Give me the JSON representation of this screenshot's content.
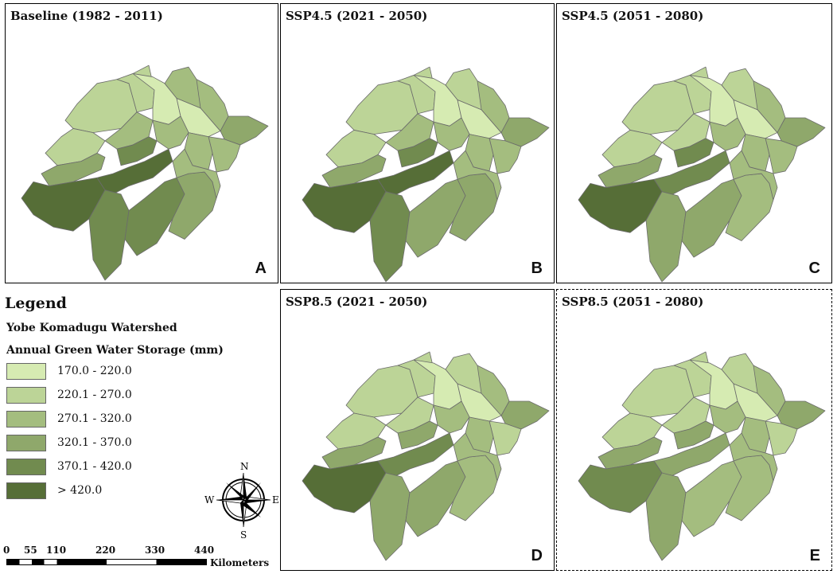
{
  "panels": [
    {
      "title": "Baseline (1982 - 2011)",
      "letter": "A"
    },
    {
      "title": "SSP4.5 (2021 - 2050)",
      "letter": "B"
    },
    {
      "title": "SSP4.5 (2051 - 2080)",
      "letter": "C"
    },
    {
      "title": "SSP8.5 (2021 - 2050)",
      "letter": "D"
    },
    {
      "title": "SSP8.5 (2051 - 2080)",
      "letter": "E"
    }
  ],
  "legend": {
    "heading": "Legend",
    "line1": "Yobe Komadugu Watershed",
    "line2": "Annual Green Water Storage (mm)",
    "classes": [
      {
        "label": "170.0 - 220.0",
        "color": "#d6ebb2"
      },
      {
        "label": "220.1 - 270.0",
        "color": "#bcd497"
      },
      {
        "label": "270.1 - 320.0",
        "color": "#a4bd7f"
      },
      {
        "label": "320.1 - 370.0",
        "color": "#8fa86b"
      },
      {
        "label": "370.1 - 420.0",
        "color": "#718b4f"
      },
      {
        "label": "> 420.0",
        "color": "#566e37"
      }
    ]
  },
  "compass": {
    "n": "N",
    "s": "S",
    "e": "E",
    "w": "W"
  },
  "scale": {
    "ticks": [
      "0",
      "55",
      "110",
      "220",
      "330",
      "440"
    ],
    "unit": "Kilometers"
  },
  "scenarios": [
    [
      1,
      1,
      0,
      0,
      2,
      2,
      3,
      2,
      1,
      2,
      2,
      2,
      3,
      4,
      5,
      5,
      4,
      4,
      3,
      2
    ],
    [
      1,
      1,
      0,
      0,
      1,
      2,
      3,
      2,
      1,
      2,
      2,
      2,
      3,
      4,
      5,
      5,
      4,
      3,
      3,
      2
    ],
    [
      1,
      1,
      0,
      0,
      1,
      2,
      3,
      2,
      1,
      1,
      2,
      2,
      3,
      4,
      5,
      4,
      3,
      3,
      2,
      2
    ],
    [
      1,
      1,
      0,
      0,
      1,
      2,
      3,
      1,
      1,
      1,
      2,
      2,
      3,
      3,
      5,
      4,
      3,
      3,
      2,
      2
    ],
    [
      1,
      1,
      0,
      0,
      1,
      2,
      3,
      1,
      1,
      1,
      2,
      2,
      3,
      3,
      4,
      3,
      3,
      2,
      2,
      2
    ]
  ]
}
